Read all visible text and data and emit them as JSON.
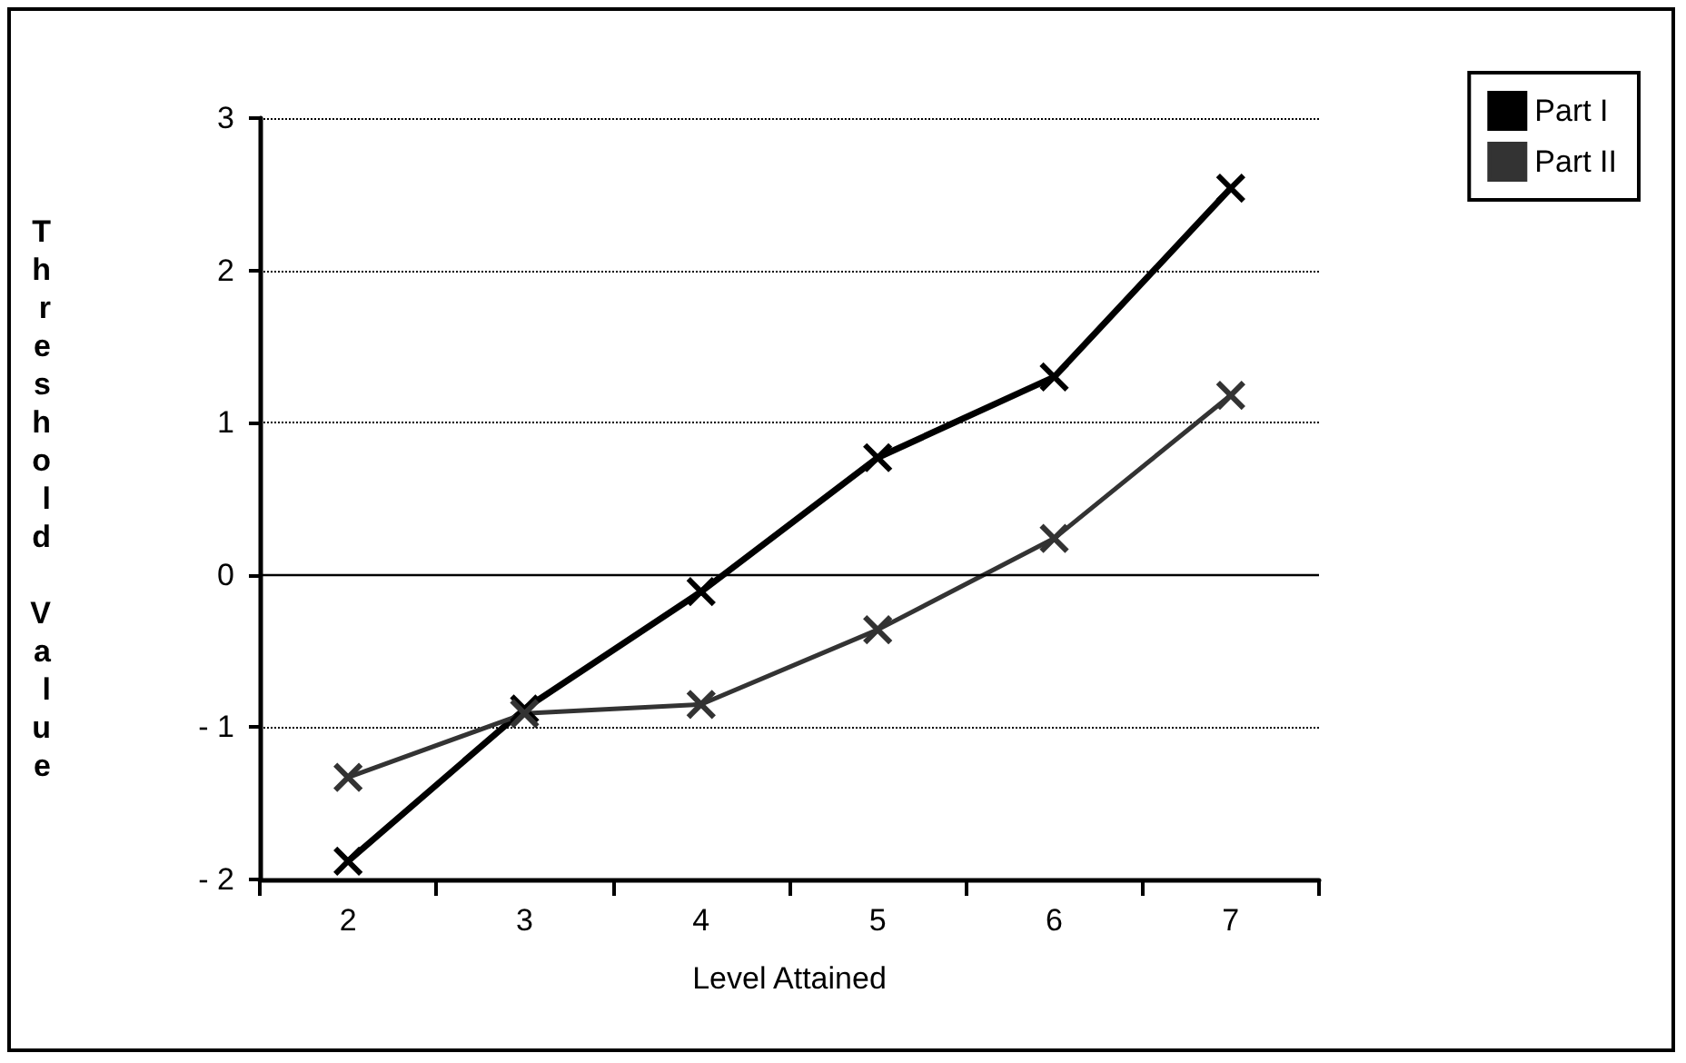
{
  "chart_data": {
    "type": "line",
    "xlabel": "Level Attained",
    "ylabel": "Threshold Value",
    "categories": [
      "2",
      "3",
      "4",
      "5",
      "6",
      "7"
    ],
    "series": [
      {
        "name": "Part I",
        "color": "#000000",
        "values": [
          -1.88,
          -0.88,
          -0.11,
          0.77,
          1.3,
          2.54
        ]
      },
      {
        "name": "Part II",
        "color": "#333333",
        "values": [
          -1.33,
          -0.91,
          -0.85,
          -0.36,
          0.24,
          1.18
        ]
      }
    ],
    "ylim": [
      -2,
      3
    ],
    "yticks": [
      {
        "value": -2,
        "label": "- 2"
      },
      {
        "value": -1,
        "label": "- 1"
      },
      0,
      1,
      2,
      3
    ],
    "ref_lines": [
      {
        "axis": "y",
        "value": 0,
        "color": "#000000",
        "line_style": "solid"
      }
    ],
    "grid": "y",
    "legend": "top right",
    "marker": "cross",
    "line_style": "solid"
  }
}
